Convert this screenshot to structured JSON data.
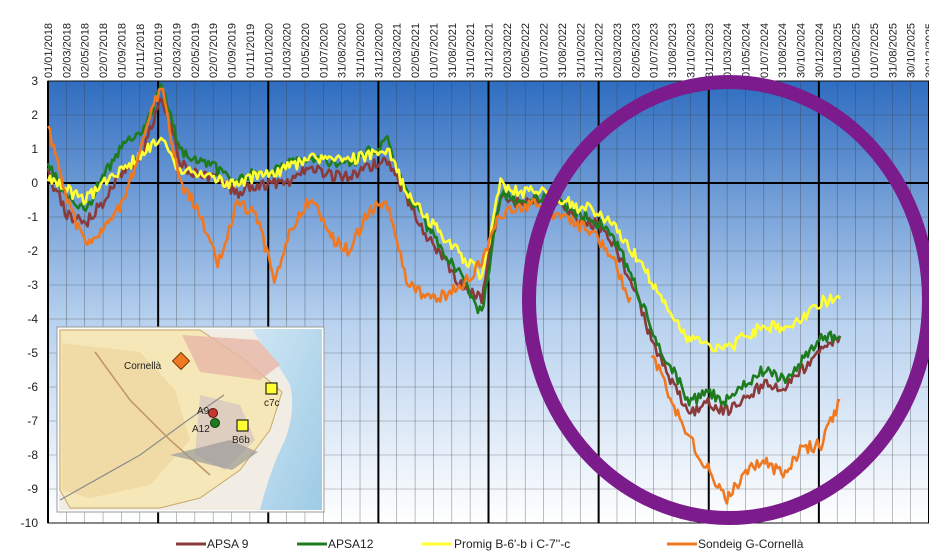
{
  "chart_data": {
    "type": "line",
    "xlabel": "",
    "ylabel": "",
    "ylim": [
      -10,
      3
    ],
    "yticks": [
      3,
      2,
      1,
      0,
      -1,
      -2,
      -3,
      -4,
      -5,
      -6,
      -7,
      -8,
      -9,
      -10
    ],
    "grid": true,
    "xticks": [
      "01/01/2018",
      "02/03/2018",
      "02/05/2018",
      "02/07/2018",
      "01/09/2018",
      "01/11/2018",
      "01/01/2019",
      "02/03/2019",
      "02/05/2019",
      "02/07/2019",
      "01/09/2019",
      "01/11/2019",
      "01/01/2020",
      "01/03/2020",
      "01/05/2020",
      "01/07/2020",
      "31/08/2020",
      "31/10/2020",
      "31/12/2020",
      "02/03/2021",
      "02/05/2021",
      "01/07/2021",
      "31/08/2021",
      "31/10/2021",
      "31/12/2021",
      "02/03/2022",
      "02/05/2022",
      "01/07/2022",
      "31/08/2022",
      "31/10/2022",
      "31/12/2022",
      "02/03/2023",
      "02/05/2023",
      "01/07/2023",
      "31/08/2023",
      "31/10/2023",
      "31/12/2023",
      "01/03/2024",
      "01/05/2024",
      "01/07/2024",
      "31/08/2024",
      "30/10/2024",
      "30/12/2024",
      "01/03/2025",
      "01/05/2025",
      "01/07/2025",
      "31/08/2025",
      "30/10/2025",
      "30/12/2025"
    ],
    "series": [
      {
        "name": "APSA 9",
        "color": "#8B3A3A",
        "values": [
          0.3,
          -0.9,
          -1.2,
          -0.5,
          0.4,
          0.8,
          2.6,
          0.6,
          0.2,
          0.2,
          -0.3,
          -0.1,
          0.0,
          0.1,
          0.5,
          0.2,
          0.2,
          0.5,
          0.6,
          -0.4,
          -1.5,
          -2.2,
          -3.1,
          -3.4,
          -0.4,
          -0.6,
          -0.4,
          -0.5,
          -1.0,
          -1.2,
          -1.8,
          -3.0,
          -4.6,
          -5.8,
          -6.8,
          -6.5,
          -6.7,
          -6.3,
          -5.9,
          -6.1,
          -5.5,
          -4.8,
          -4.5
        ]
      },
      {
        "name": "APSA12",
        "color": "#1E7B1E",
        "values": [
          0.5,
          -0.4,
          -0.8,
          0.3,
          1.1,
          1.4,
          2.9,
          1.0,
          0.6,
          0.4,
          0.0,
          0.3,
          0.4,
          0.6,
          0.8,
          0.6,
          0.6,
          0.9,
          1.3,
          -0.3,
          -1.2,
          -2.0,
          -2.8,
          -3.9,
          -0.3,
          -0.6,
          -0.4,
          -0.5,
          -0.9,
          -1.1,
          -1.6,
          -2.8,
          -4.3,
          -5.4,
          -6.4,
          -6.2,
          -6.4,
          -5.9,
          -5.5,
          -5.8,
          -5.2,
          -4.5,
          -4.5
        ]
      },
      {
        "name": "Promig B-6'-b i C-7''-c",
        "color": "#FFFF33",
        "values": [
          0.2,
          -0.2,
          -0.5,
          0.0,
          0.4,
          0.9,
          1.3,
          0.4,
          0.2,
          0.1,
          -0.1,
          0.2,
          0.3,
          0.5,
          0.8,
          0.6,
          0.7,
          0.8,
          1.0,
          -0.3,
          -1.0,
          -1.6,
          -2.2,
          -2.7,
          0.0,
          -0.3,
          -0.2,
          -0.4,
          -0.7,
          -0.8,
          -1.2,
          -2.0,
          -2.9,
          -3.7,
          -4.6,
          -4.8,
          -4.9,
          -4.5,
          -4.2,
          -4.3,
          -4.0,
          -3.5,
          -3.4
        ]
      },
      {
        "name": "Sondeig G-Cornellà",
        "color": "#F07820",
        "values": [
          1.7,
          -0.5,
          -1.9,
          -1.3,
          -0.6,
          1.2,
          2.9,
          0.0,
          -0.8,
          -2.4,
          -0.6,
          -0.9,
          -2.8,
          -1.2,
          -0.4,
          -1.6,
          -2.0,
          -0.8,
          -0.6,
          -2.8,
          -3.4,
          -3.3,
          -3.0,
          -2.3,
          -0.9,
          -0.8,
          -0.5,
          -1.0,
          -1.2,
          -1.5,
          -2.3,
          -3.6,
          -5.0,
          -6.3,
          -7.5,
          -8.4,
          -9.3,
          -8.5,
          -8.2,
          -8.6,
          -7.8,
          -7.7,
          -6.4
        ]
      }
    ],
    "series_gaps": {
      "Sondeig G-Cornellà": [
        31,
        32
      ]
    }
  },
  "inset_map": {
    "labels": {
      "cornella": "Cornellà",
      "a9": "A9",
      "a12": "A12",
      "b6b": "B6b",
      "c7c": "c7c"
    }
  },
  "annotation": {
    "shape": "ellipse",
    "color": "#7B1B8C"
  },
  "colors": {
    "plot_top": "#2F6DC0",
    "plot_bottom": "#FFFFFF",
    "grid": "#000000"
  }
}
